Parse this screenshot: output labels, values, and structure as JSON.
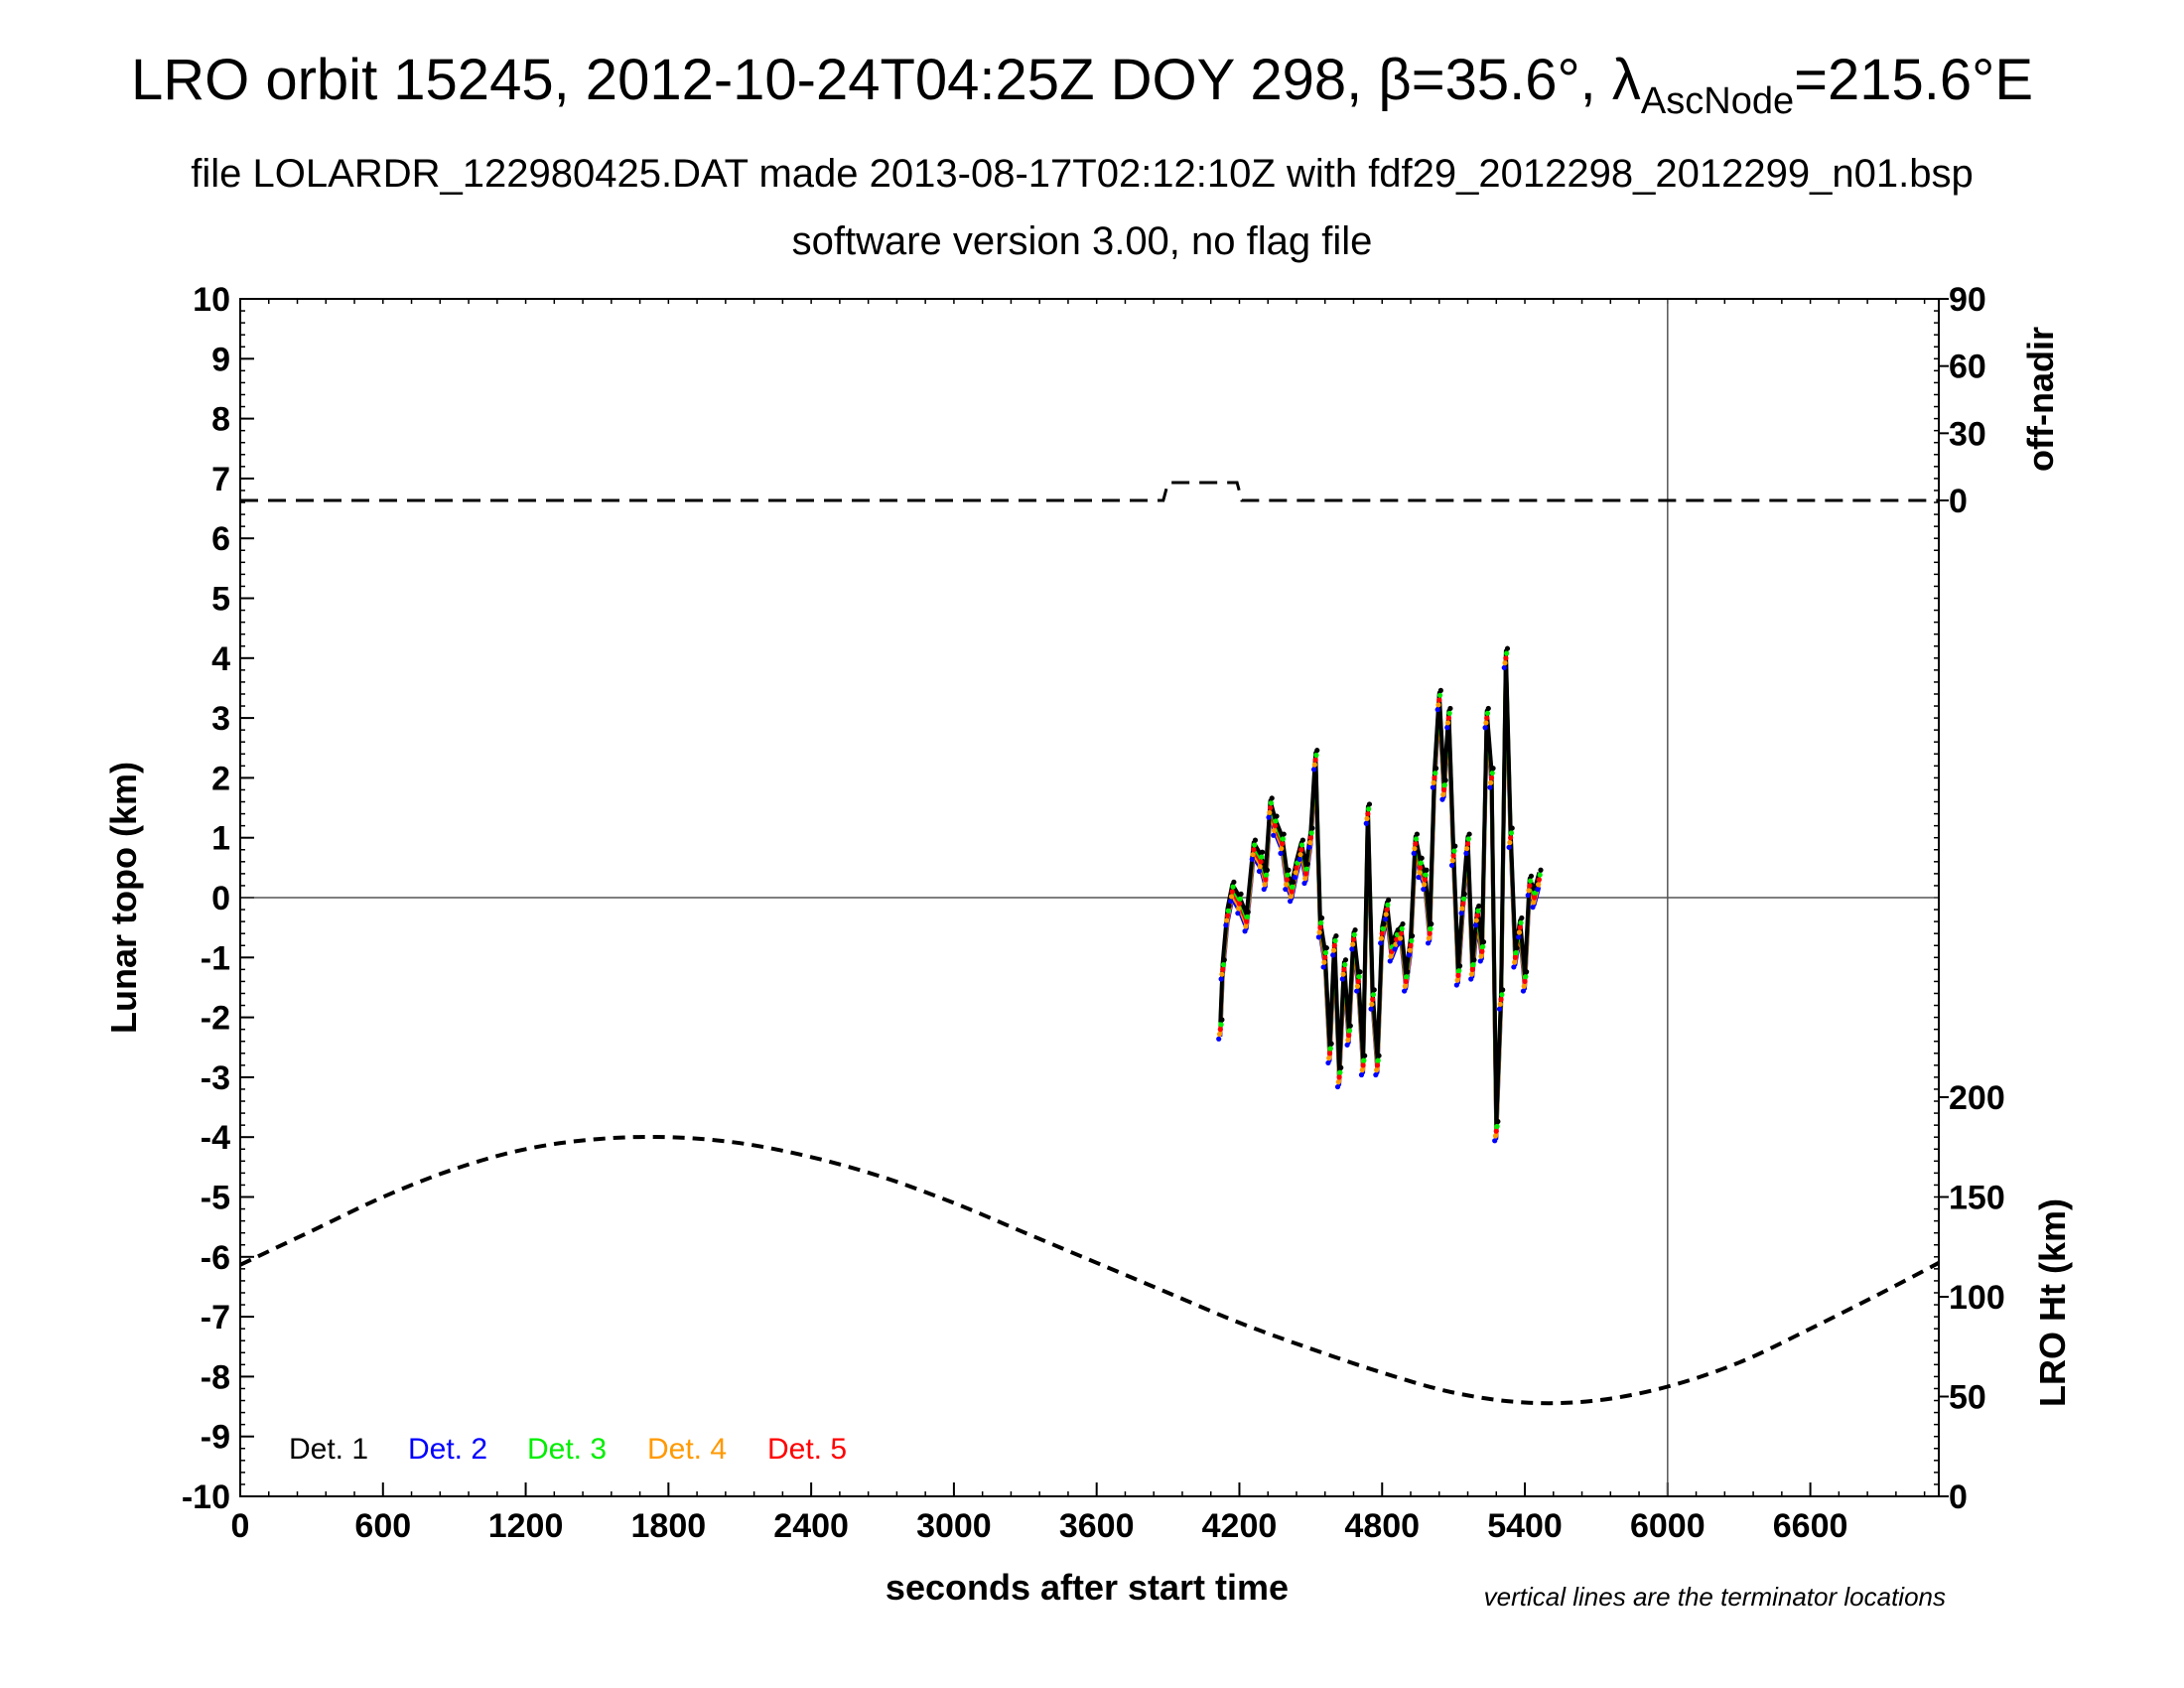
{
  "chart_data": {
    "type": "scatter",
    "title": {
      "main": "LRO orbit 15245, 2012-10-24T04:25Z DOY 298, β=35.6°, λ",
      "subscript": "AscNode",
      "suffix": "=215.6°E"
    },
    "subtitle": "file LOLARDR_122980425.DAT made 2013-08-17T02:12:10Z with fdf29_2012298_2012299_n01.bsp",
    "subtitle2": "software version 3.00, no flag file",
    "xlabel": "seconds after start time",
    "ylabel": "Lunar topo (km)",
    "right_label_top": "off-nadir",
    "right_label_bottom": "LRO Ht (km)",
    "footnote": "vertical lines are the terminator locations",
    "xlim": [
      0,
      7140
    ],
    "ylim": [
      -10,
      10
    ],
    "x_ticks": [
      0,
      600,
      1200,
      1800,
      2400,
      3000,
      3600,
      4200,
      4800,
      5400,
      6000,
      6600
    ],
    "y_ticks": [
      -10,
      -9,
      -8,
      -7,
      -6,
      -5,
      -4,
      -3,
      -2,
      -1,
      0,
      1,
      2,
      3,
      4,
      5,
      6,
      7,
      8,
      9,
      10
    ],
    "off_nadir_ticks": [
      0,
      30,
      60,
      90
    ],
    "height_ticks": [
      0,
      50,
      100,
      150,
      200
    ],
    "terminator_x": 6000,
    "zero_line": 0,
    "legend": [
      {
        "label": "Det. 1",
        "color": "#000000"
      },
      {
        "label": "Det. 2",
        "color": "#0000ff"
      },
      {
        "label": "Det. 3",
        "color": "#00ee00"
      },
      {
        "label": "Det. 4",
        "color": "#ff9900"
      },
      {
        "label": "Det. 5",
        "color": "#ff0000"
      }
    ],
    "off_nadir_deg": {
      "x": [
        0,
        3880,
        3890,
        3900,
        4010,
        4190,
        4200,
        4210,
        7140
      ],
      "y": [
        0,
        0,
        4,
        8,
        8,
        8,
        4,
        0,
        0
      ]
    },
    "lro_height_km": {
      "x": [
        0,
        300,
        600,
        900,
        1200,
        1500,
        1800,
        2100,
        2400,
        2700,
        3000,
        3300,
        3600,
        3900,
        4200,
        4500,
        4800,
        5100,
        5400,
        5700,
        6000,
        6300,
        6600,
        6900,
        7140
      ],
      "y": [
        116,
        133,
        150,
        164,
        174,
        179,
        180,
        177,
        170,
        160,
        147,
        132,
        117,
        102,
        87,
        74,
        62,
        52,
        47,
        48,
        55,
        67,
        84,
        102,
        117
      ]
    },
    "topo_km": {
      "x": [
        4120,
        4130,
        4150,
        4170,
        4200,
        4230,
        4260,
        4290,
        4310,
        4330,
        4350,
        4380,
        4400,
        4420,
        4440,
        4460,
        4480,
        4500,
        4520,
        4540,
        4560,
        4580,
        4600,
        4620,
        4640,
        4660,
        4680,
        4700,
        4720,
        4740,
        4760,
        4780,
        4800,
        4820,
        4840,
        4860,
        4880,
        4900,
        4920,
        4940,
        4960,
        4980,
        5000,
        5020,
        5040,
        5060,
        5080,
        5100,
        5120,
        5140,
        5160,
        5180,
        5200,
        5220,
        5240,
        5260,
        5280,
        5300,
        5320,
        5340,
        5360,
        5380,
        5400,
        5420,
        5440,
        5460
      ],
      "y": [
        -2.2,
        -1.2,
        -0.3,
        0.1,
        -0.1,
        -0.4,
        0.8,
        0.6,
        0.3,
        1.5,
        1.2,
        0.9,
        0.3,
        0.1,
        0.5,
        0.8,
        0.4,
        1.0,
        2.3,
        -0.5,
        -1.0,
        -2.6,
        -0.8,
        -3.0,
        -1.2,
        -2.3,
        -0.7,
        -1.4,
        -2.8,
        1.4,
        -1.7,
        -2.8,
        -0.6,
        -0.2,
        -0.9,
        -0.7,
        -0.6,
        -1.4,
        -0.8,
        0.9,
        0.5,
        0.3,
        -0.6,
        2.0,
        3.3,
        1.8,
        3.0,
        0.7,
        -1.3,
        -0.1,
        0.9,
        -1.2,
        -0.3,
        -0.9,
        3.0,
        2.0,
        -3.9,
        -1.7,
        4.0,
        1.0,
        -1.0,
        -0.5,
        -1.4,
        0.2,
        0.0,
        0.3
      ]
    }
  }
}
